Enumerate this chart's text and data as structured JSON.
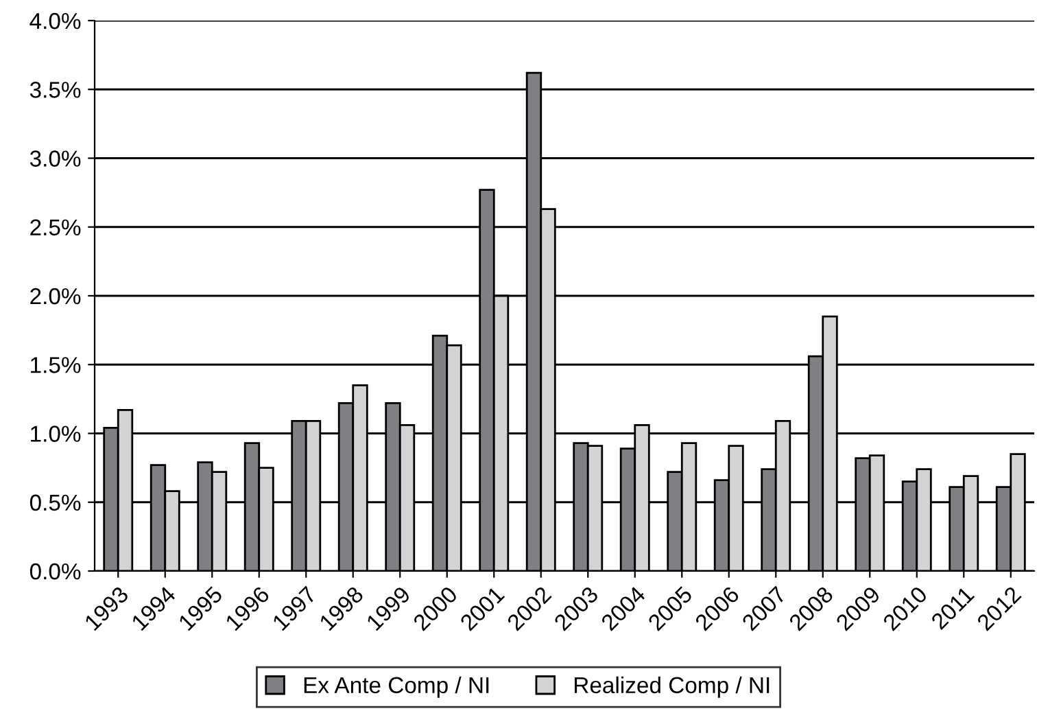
{
  "chart_data": {
    "type": "bar",
    "categories": [
      "1993",
      "1994",
      "1995",
      "1996",
      "1997",
      "1998",
      "1999",
      "2000",
      "2001",
      "2002",
      "2003",
      "2004",
      "2005",
      "2006",
      "2007",
      "2008",
      "2009",
      "2010",
      "2011",
      "2012"
    ],
    "series": [
      {
        "name": "Ex Ante Comp / NI",
        "color": "#7f7f84",
        "values": [
          1.04,
          0.77,
          0.79,
          0.93,
          1.09,
          1.22,
          1.22,
          1.71,
          2.77,
          3.62,
          0.93,
          0.89,
          0.72,
          0.66,
          0.74,
          1.56,
          0.82,
          0.65,
          0.61,
          0.61
        ]
      },
      {
        "name": "Realized Comp / NI",
        "color": "#d3d3d5",
        "values": [
          1.17,
          0.58,
          0.72,
          0.75,
          1.09,
          1.35,
          1.06,
          1.64,
          2.0,
          2.63,
          0.91,
          1.06,
          0.93,
          0.91,
          1.09,
          1.85,
          0.84,
          0.74,
          0.69,
          0.85
        ]
      }
    ],
    "ylim": [
      0,
      4
    ],
    "yticks": [
      {
        "value": 0,
        "label": "0.0%"
      },
      {
        "value": 0.5,
        "label": "0.5%"
      },
      {
        "value": 1,
        "label": "1.0%"
      },
      {
        "value": 1.5,
        "label": "1.5%"
      },
      {
        "value": 2,
        "label": "2.0%"
      },
      {
        "value": 2.5,
        "label": "2.5%"
      },
      {
        "value": 3,
        "label": "3.0%"
      },
      {
        "value": 3.5,
        "label": "3.5%"
      },
      {
        "value": 4,
        "label": "4.0%"
      }
    ],
    "grid": "y",
    "legend": "bottom"
  }
}
